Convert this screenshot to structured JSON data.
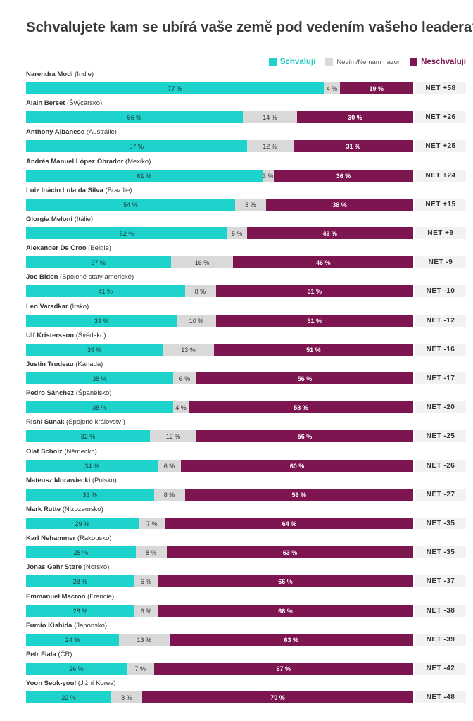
{
  "title": "Schvalujete kam se ubírá vaše země pod vedením vašeho leadera?",
  "legend": {
    "approve": "Schvaluji",
    "neutral": "Nevím/Nemám názor",
    "disapprove": "Neschvaluji"
  },
  "colors": {
    "approve": "#1fd3cd",
    "neutral": "#d9d9d9",
    "disapprove": "#7d1650",
    "net_bg": "#f2f2f2"
  },
  "chart_data": {
    "type": "bar",
    "orientation": "horizontal",
    "stacked": true,
    "title": "Schvalujete kam se ubírá vaše země pod vedením vašeho leadera?",
    "series_names": [
      "Schvaluji",
      "Nevím/Nemám názor",
      "Neschvaluji"
    ],
    "legend_position": "top-right",
    "rows": [
      {
        "name": "Narendra Modi",
        "country": "(Indie)",
        "approve": 77,
        "neutral": 4,
        "disapprove": 19,
        "approve_label": "77 %",
        "neutral_label": "4 %",
        "disapprove_label": "19 %",
        "net": "NET +58"
      },
      {
        "name": "Alain Berset",
        "country": "(Švýcarsko)",
        "approve": 56,
        "neutral": 14,
        "disapprove": 30,
        "approve_label": "56 %",
        "neutral_label": "14 %",
        "disapprove_label": "30 %",
        "net": "NET +26"
      },
      {
        "name": "Anthony Albanese",
        "country": "(Austrálie)",
        "approve": 57,
        "neutral": 12,
        "disapprove": 31,
        "approve_label": "57 %",
        "neutral_label": "12 %",
        "disapprove_label": "31 %",
        "net": "NET +25"
      },
      {
        "name": "Andrés Manuel López Obrador",
        "country": "(Mexiko)",
        "approve": 61,
        "neutral": 3,
        "disapprove": 36,
        "approve_label": "61 %",
        "neutral_label": "3 %",
        "disapprove_label": "36 %",
        "net": "NET +24"
      },
      {
        "name": "Luiz Inácio Lula da Silva",
        "country": "(Brazílie)",
        "approve": 54,
        "neutral": 8,
        "disapprove": 38,
        "approve_label": "54 %",
        "neutral_label": "8 %",
        "disapprove_label": "38 %",
        "net": "NET +15"
      },
      {
        "name": "Giorgia Meloni",
        "country": "(Itálie)",
        "approve": 52,
        "neutral": 5,
        "disapprove": 43,
        "approve_label": "52 %",
        "neutral_label": "5 %",
        "disapprove_label": "43 %",
        "net": "NET +9"
      },
      {
        "name": "Alexander De Croo",
        "country": "(Belgie)",
        "approve": 37,
        "neutral": 16,
        "disapprove": 46,
        "approve_label": "37 %",
        "neutral_label": "16 %",
        "disapprove_label": "46 %",
        "net": "NET -9"
      },
      {
        "name": "Joe Biden",
        "country": "(Spojené státy americké)",
        "approve": 41,
        "neutral": 8,
        "disapprove": 51,
        "approve_label": "41 %",
        "neutral_label": "8 %",
        "disapprove_label": "51 %",
        "net": "NET -10"
      },
      {
        "name": "Leo Varadkar",
        "country": "(Irsko)",
        "approve": 39,
        "neutral": 10,
        "disapprove": 51,
        "approve_label": "39 %",
        "neutral_label": "10 %",
        "disapprove_label": "51 %",
        "net": "NET -12"
      },
      {
        "name": "Ulf Kristersson",
        "country": "(Švédsko)",
        "approve": 35,
        "neutral": 13,
        "disapprove": 51,
        "approve_label": "35 %",
        "neutral_label": "13 %",
        "disapprove_label": "51 %",
        "net": "NET -16"
      },
      {
        "name": "Justin Trudeau",
        "country": "(Kanada)",
        "approve": 38,
        "neutral": 6,
        "disapprove": 56,
        "approve_label": "38 %",
        "neutral_label": "6 %",
        "disapprove_label": "56 %",
        "net": "NET -17"
      },
      {
        "name": "Pedro Sánchez",
        "country": "(Španělsko)",
        "approve": 38,
        "neutral": 4,
        "disapprove": 58,
        "approve_label": "38 %",
        "neutral_label": "4 %",
        "disapprove_label": "58 %",
        "net": "NET -20"
      },
      {
        "name": "Rishi Sunak",
        "country": "(Spojené království)",
        "approve": 32,
        "neutral": 12,
        "disapprove": 56,
        "approve_label": "32 %",
        "neutral_label": "12 %",
        "disapprove_label": "56 %",
        "net": "NET -25"
      },
      {
        "name": "Olaf Scholz",
        "country": "(Německo)",
        "approve": 34,
        "neutral": 6,
        "disapprove": 60,
        "approve_label": "34 %",
        "neutral_label": "6 %",
        "disapprove_label": "60 %",
        "net": "NET -26"
      },
      {
        "name": "Mateusz Morawiecki",
        "country": "(Polsko)",
        "approve": 33,
        "neutral": 8,
        "disapprove": 59,
        "approve_label": "33 %",
        "neutral_label": "8 %",
        "disapprove_label": "59 %",
        "net": "NET -27"
      },
      {
        "name": "Mark Rutte",
        "country": "(Nizozemsko)",
        "approve": 29,
        "neutral": 7,
        "disapprove": 64,
        "approve_label": "29 %",
        "neutral_label": "7 %",
        "disapprove_label": "64 %",
        "net": "NET -35"
      },
      {
        "name": "Karl Nehammer",
        "country": "(Rakousko)",
        "approve": 28,
        "neutral": 8,
        "disapprove": 63,
        "approve_label": "28 %",
        "neutral_label": "8 %",
        "disapprove_label": "63 %",
        "net": "NET -35"
      },
      {
        "name": "Jonas Gahr Støre",
        "country": "(Norsko)",
        "approve": 28,
        "neutral": 6,
        "disapprove": 66,
        "approve_label": "28 %",
        "neutral_label": "6 %",
        "disapprove_label": "66 %",
        "net": "NET -37"
      },
      {
        "name": "Emmanuel Macron",
        "country": "(Francie)",
        "approve": 28,
        "neutral": 6,
        "disapprove": 66,
        "approve_label": "28 %",
        "neutral_label": "6 %",
        "disapprove_label": "66 %",
        "net": "NET -38"
      },
      {
        "name": "Fumio Kishida",
        "country": "(Japonsko)",
        "approve": 24,
        "neutral": 13,
        "disapprove": 63,
        "approve_label": "24 %",
        "neutral_label": "13 %",
        "disapprove_label": "63 %",
        "net": "NET -39"
      },
      {
        "name": "Petr Fiala",
        "country": "(ČR)",
        "approve": 26,
        "neutral": 7,
        "disapprove": 67,
        "approve_label": "26 %",
        "neutral_label": "7 %",
        "disapprove_label": "67 %",
        "net": "NET -42"
      },
      {
        "name": "Yoon Seok-youl",
        "country": "(Jižní Korea)",
        "approve": 22,
        "neutral": 8,
        "disapprove": 70,
        "approve_label": "22 %",
        "neutral_label": "8 %",
        "disapprove_label": "70 %",
        "net": "NET -48"
      }
    ]
  }
}
